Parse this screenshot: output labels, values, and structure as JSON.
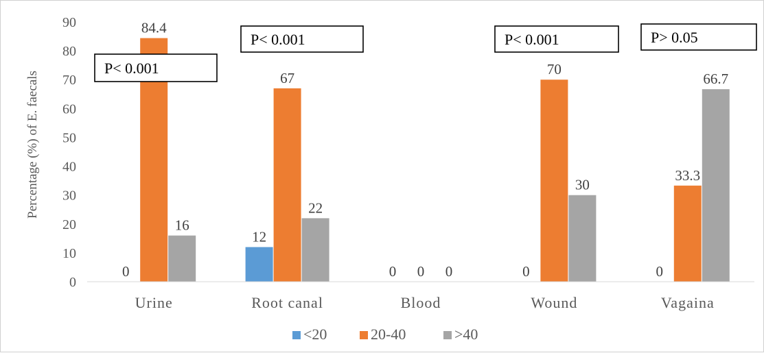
{
  "chart_data": {
    "type": "bar",
    "title": "",
    "xlabel": "",
    "ylabel": "Percentage  (%) of E. faecals",
    "ylim": [
      0,
      90
    ],
    "yticks": [
      0,
      10,
      20,
      30,
      40,
      50,
      60,
      70,
      80,
      90
    ],
    "categories": [
      "Urine",
      "Root canal",
      "Blood",
      "Wound",
      "Vagaina"
    ],
    "series": [
      {
        "name": "<20",
        "color": "#5b9bd5",
        "values": [
          0,
          12,
          0,
          0,
          0
        ],
        "labels": [
          "0",
          "12",
          "0",
          "0",
          "0"
        ]
      },
      {
        "name": "20-40",
        "color": "#ed7d31",
        "values": [
          84.4,
          67,
          0,
          70,
          33.3
        ],
        "labels": [
          "84.4",
          "67",
          "0",
          "70",
          "33.3"
        ]
      },
      {
        "name": ">40",
        "color": "#a5a5a5",
        "values": [
          16,
          22,
          0,
          30,
          66.7
        ],
        "labels": [
          "16",
          "22",
          "0",
          "30",
          "66.7"
        ]
      }
    ],
    "grid": false,
    "legend_position": "bottom",
    "annotations": [
      {
        "category": "Urine",
        "text": "P< 0.001"
      },
      {
        "category": "Root canal",
        "text": "P< 0.001"
      },
      {
        "category": "Wound",
        "text": "P< 0.001"
      },
      {
        "category": "Vagaina",
        "text": "P> 0.05"
      }
    ]
  }
}
